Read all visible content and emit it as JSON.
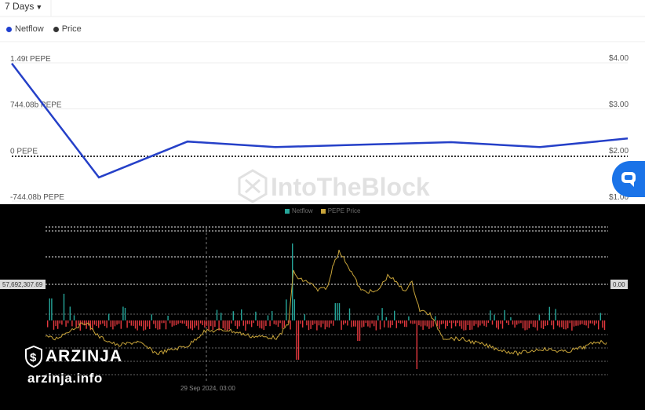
{
  "top_chart": {
    "period": "7 Days",
    "legend": [
      {
        "label": "Netflow",
        "color": "#1f3fcf"
      },
      {
        "label": "Price",
        "color": "#333333"
      }
    ],
    "watermark": "IntoTheBlock"
  },
  "bottom_chart": {
    "legend": [
      {
        "label": "Netflow",
        "color": "#26a69a"
      },
      {
        "label": "PEPE Price",
        "color": "#c9a53a"
      }
    ],
    "y_tag_left": "57,692,307.69",
    "y_tag_right": "0.00",
    "x_tick": "29 Sep 2024, 03:00"
  },
  "brand": {
    "name": "ARZINJA",
    "url": "arzinja.info",
    "icon": "dollar-shield-logo"
  },
  "chart_data": [
    {
      "type": "line",
      "title": "",
      "series": [
        {
          "name": "Netflow",
          "values": [
            1.49,
            -0.35,
            0.23,
            0.14,
            0.18,
            0.22,
            0.14,
            0.28
          ]
        }
      ],
      "y_unit": "t PEPE",
      "y_ticks": [
        "1.49t PEPE",
        "744.08b PEPE",
        "0 PEPE",
        "-744.08b PEPE"
      ],
      "y_tick_values": [
        1.488,
        0.744,
        0,
        -0.744
      ],
      "y2_ticks": [
        "$4.00",
        "$3.00",
        "$2.00",
        "$1.00"
      ],
      "ylim": [
        -0.744,
        1.488
      ],
      "zero_line": "dotted",
      "grid": true
    },
    {
      "type": "bar",
      "title": "",
      "series": [
        {
          "name": "Netflow"
        },
        {
          "name": "PEPE Price"
        }
      ],
      "markers": {
        "y_left": "57,692,307.69",
        "y_right": "0.00",
        "x": "29 Sep 2024, 03:00"
      },
      "grid": true
    }
  ]
}
